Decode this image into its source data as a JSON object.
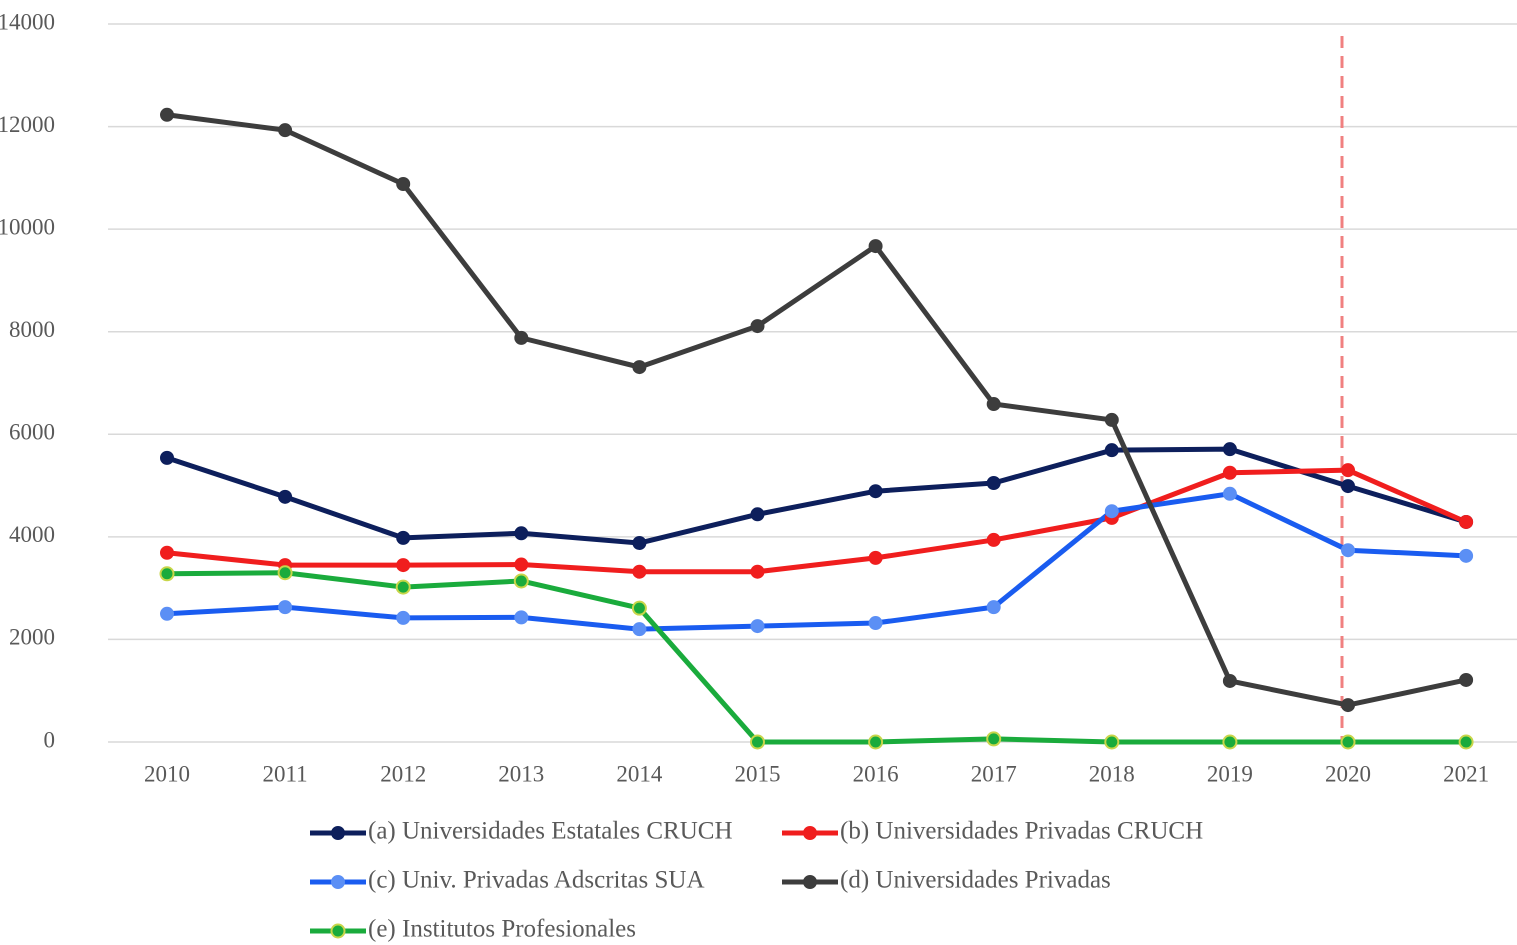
{
  "chart_data": {
    "type": "line",
    "categories": [
      "2010",
      "2011",
      "2012",
      "2013",
      "2014",
      "2015",
      "2016",
      "2017",
      "2018",
      "2019",
      "2020",
      "2021"
    ],
    "series": [
      {
        "name": "(a) Universidades Estatales CRUCH",
        "color": "#0d1f5c",
        "values": [
          5540,
          4780,
          3980,
          4070,
          3880,
          4440,
          4890,
          5050,
          5690,
          5710,
          4990,
          4290
        ]
      },
      {
        "name": "(b) Universidades Privadas CRUCH",
        "color": "#f01e1e",
        "values": [
          3690,
          3450,
          3450,
          3460,
          3320,
          3320,
          3590,
          3940,
          4370,
          5250,
          5300,
          4290
        ]
      },
      {
        "name": "(c) Univ. Privadas Adscritas SUA",
        "color": "#1a5cf0",
        "marker_color": "#5b8ff5",
        "values": [
          2500,
          2630,
          2420,
          2430,
          2200,
          2260,
          2320,
          2630,
          4500,
          4840,
          3740,
          3630
        ]
      },
      {
        "name": "(d) Universidades Privadas",
        "color": "#3d3d3d",
        "values": [
          12230,
          11930,
          10880,
          7880,
          7310,
          8110,
          9670,
          6590,
          6280,
          1190,
          720,
          1210
        ]
      },
      {
        "name": "(e) Institutos Profesionales",
        "color": "#1aab3c",
        "marker_edge": "#c8d64a",
        "values": [
          3280,
          3300,
          3020,
          3140,
          2610,
          0,
          0,
          60,
          0,
          0,
          0,
          0
        ]
      }
    ],
    "ylim": [
      0,
      14000
    ],
    "yticks": [
      0,
      2000,
      4000,
      6000,
      8000,
      10000,
      12000,
      14000
    ],
    "grid": true,
    "reference_line": {
      "category": "2020",
      "color": "#f08080"
    },
    "legend": "bottom"
  }
}
